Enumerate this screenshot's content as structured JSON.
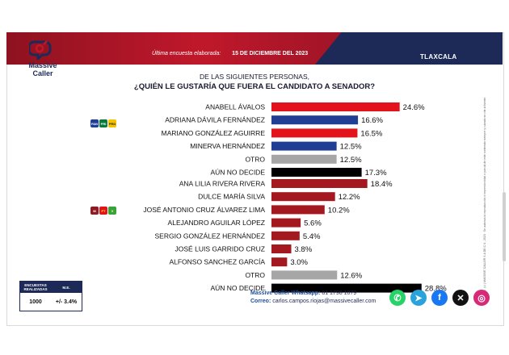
{
  "header": {
    "survey_label": "Última encuesta elaborada:",
    "survey_date": "15 DE DICIEMBRE DEL 2023",
    "state": "TLAXCALA"
  },
  "logo": {
    "line1": "Massive",
    "line2": "Caller"
  },
  "question": {
    "line1": "DE LAS SIGUIENTES  PERSONAS,",
    "line2": "¿QUIÉN LE GUSTARÍA QUE FUERA EL CANDIDATO  A SENADOR?"
  },
  "chart_data": {
    "type": "bar",
    "orientation": "horizontal",
    "groups": [
      {
        "coalition_parties": [
          "PAN",
          "PRI",
          "PRD"
        ],
        "categories": [
          "ANABELL ÁVALOS",
          "ADRIANA DÁVILA FERNÁNDEZ",
          "MARIANO GONZÁLEZ AGUIRRE",
          "MINERVA HERNÁNDEZ",
          "OTRO",
          "AÚN NO DECIDE"
        ],
        "values": [
          24.6,
          16.6,
          16.5,
          12.5,
          12.5,
          17.3
        ],
        "labels": [
          "24.6%",
          "16.6%",
          "16.5%",
          "12.5%",
          "12.5%",
          "17.3%"
        ],
        "colors": [
          "#e3131b",
          "#1f3e94",
          "#e3131b",
          "#1f3e94",
          "#a6a6a6",
          "#000000"
        ]
      },
      {
        "coalition_parties": [
          "MORENA",
          "PT",
          "PVEM"
        ],
        "categories": [
          "ANA LILIA RIVERA RIVERA",
          "DULCE MARÍA SILVA",
          "JOSÉ ANTONIO CRUZ ÁLVAREZ LIMA",
          "ALEJANDRO AGUILAR LÓPEZ",
          "SERGIO GONZÁLEZ HERNÁNDEZ",
          "JOSÉ LUIS GARRIDO CRUZ",
          "ALFONSO SANCHEZ GARCÍA",
          "OTRO",
          "AÚN NO DECIDE"
        ],
        "values": [
          18.4,
          12.2,
          10.2,
          5.6,
          5.4,
          3.8,
          3.0,
          12.6,
          28.8
        ],
        "labels": [
          "18.4%",
          "12.2%",
          "10.2%",
          "5.6%",
          "5.4%",
          "3.8%",
          "3.0%",
          "12.6%",
          "28.8%"
        ],
        "colors": [
          "#a4181f",
          "#a4181f",
          "#a4181f",
          "#a4181f",
          "#a4181f",
          "#a4181f",
          "#a4181f",
          "#a6a6a6",
          "#000000"
        ]
      }
    ],
    "xlim": [
      0,
      30
    ],
    "grid": false,
    "legend": "none"
  },
  "survey_table": {
    "header_left": "ENCUESTAS REALIZADAS",
    "header_right": "M.E.",
    "value_left": "1000",
    "value_right": "+/- 3.4%"
  },
  "contact": {
    "whatsapp_label": "Massive Caller Whatsapp:",
    "whatsapp_value": "81 1798 1079",
    "email_label": "Correo:",
    "email_value": "carlos.campos.riojas@massivecaller.com"
  },
  "social_icons": [
    {
      "name": "whatsapp-icon",
      "color": "#25d366",
      "glyph": "✆"
    },
    {
      "name": "telegram-icon",
      "color": "#2aa3dc",
      "glyph": "➤"
    },
    {
      "name": "facebook-icon",
      "color": "#1877f2",
      "glyph": "f"
    },
    {
      "name": "x-icon",
      "color": "#111111",
      "glyph": "✕"
    },
    {
      "name": "instagram-icon",
      "color": "#d62976",
      "glyph": "◎"
    }
  ],
  "side_note": "D. R. (©) MASSIVE CALLER S.A DE C.V., 2023 · Se autoriza la reproducción e impresión total o parcial de este contenido siempre y cuando se cite la fuente."
}
